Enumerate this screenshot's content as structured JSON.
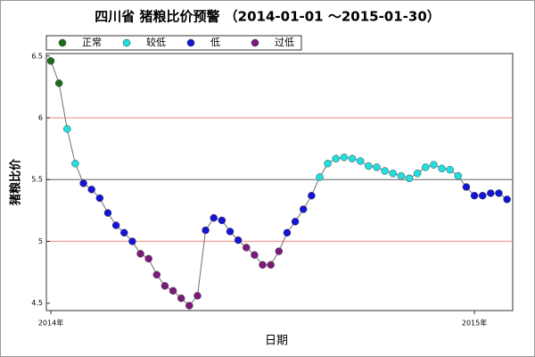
{
  "chart_data": {
    "type": "line",
    "title": "四川省 猪粮比价预警 （2014-01-01 ～2015-01-30）",
    "x_label": "日期",
    "y_label": "猪粮比价",
    "categories": [
      null,
      null,
      null,
      null,
      null,
      null,
      null,
      null,
      null,
      null,
      null,
      null,
      null,
      null,
      null,
      null,
      null,
      null,
      null,
      null,
      null,
      null,
      null,
      null,
      null,
      null,
      null,
      null,
      null,
      null,
      null,
      null,
      null,
      null,
      null,
      null,
      null,
      null,
      null,
      null,
      null,
      null,
      null,
      null,
      null,
      null,
      null,
      null,
      null,
      null,
      null,
      null,
      null,
      null,
      null,
      null,
      null
    ],
    "values": [
      6.46,
      6.28,
      5.91,
      5.63,
      5.47,
      5.42,
      5.35,
      5.23,
      5.13,
      5.07,
      5.0,
      4.9,
      4.86,
      4.73,
      4.64,
      4.6,
      4.54,
      4.48,
      4.56,
      5.09,
      5.19,
      5.17,
      5.08,
      5.01,
      4.95,
      4.89,
      4.81,
      4.81,
      4.92,
      5.07,
      5.16,
      5.26,
      5.37,
      5.52,
      5.63,
      5.67,
      5.68,
      5.67,
      5.65,
      5.61,
      5.6,
      5.57,
      5.55,
      5.53,
      5.51,
      5.55,
      5.6,
      5.62,
      5.59,
      5.58,
      5.53,
      5.44,
      5.37,
      5.37,
      5.39,
      5.39,
      5.34
    ],
    "line_color": "#707070",
    "levels": [
      {
        "name": "正常",
        "color": "#1a6e1a",
        "min": 6.0
      },
      {
        "name": "较低",
        "color": "#22dede",
        "min": 5.5
      },
      {
        "name": "低",
        "color": "#1414d4",
        "min": 5.0
      },
      {
        "name": "过低",
        "color": "#7a1a7a"
      }
    ],
    "reference_lines": [
      {
        "value": 6.0,
        "color": "#f2a0a0"
      },
      {
        "value": 5.5,
        "color": "#808080"
      },
      {
        "value": 5.0,
        "color": "#f2a0a0"
      }
    ],
    "xlim": [
      -0.55,
      56.7
    ],
    "xticks": [
      {
        "value": 0,
        "label": "2014年"
      },
      {
        "value": 52,
        "label": "2015年"
      }
    ],
    "ylim": [
      4.44,
      6.52
    ],
    "yticks": [
      4.5,
      5.0,
      5.5,
      6.0,
      6.5
    ]
  }
}
